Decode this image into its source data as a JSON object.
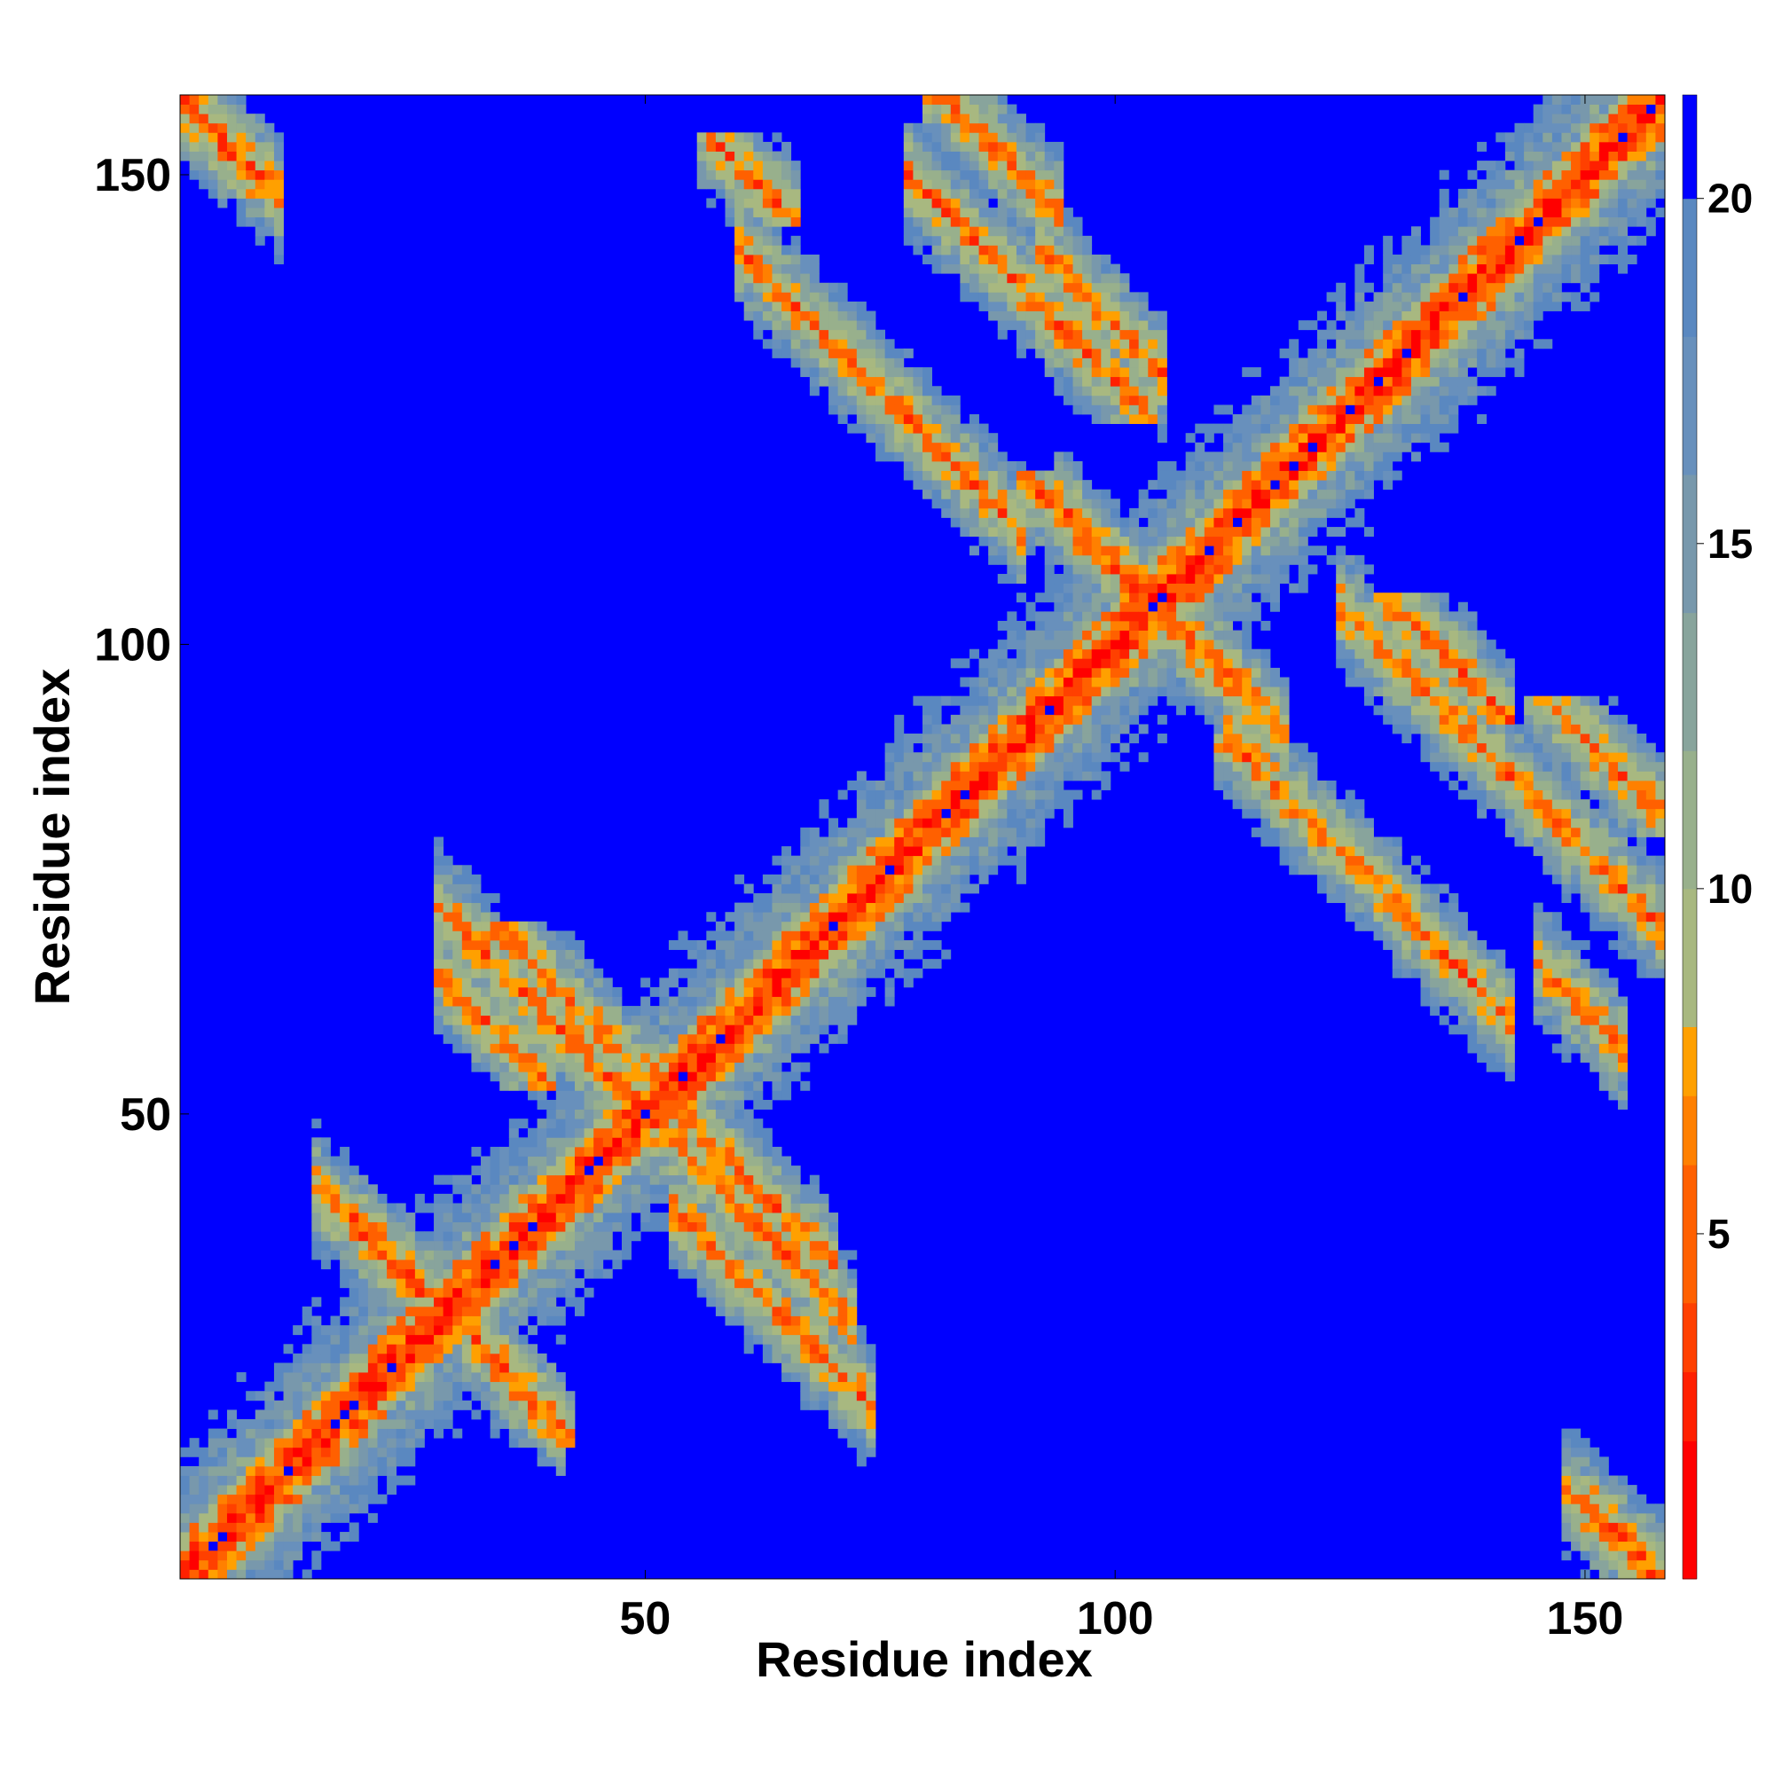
{
  "chart_data": {
    "type": "heatmap",
    "title": "",
    "xlabel": "Residue index",
    "ylabel": "Residue index",
    "n_residues": 158,
    "xlim": [
      1,
      158
    ],
    "ylim": [
      1,
      158
    ],
    "x_ticks": [
      50,
      100,
      150
    ],
    "y_ticks": [
      50,
      100,
      150
    ],
    "colorbar": {
      "ticks": [
        5,
        10,
        15,
        20
      ],
      "range": [
        0,
        21.5
      ],
      "bands": [
        {
          "min": 0,
          "max": 2,
          "color": "#ff0000"
        },
        {
          "min": 2,
          "max": 3,
          "color": "#ff2000"
        },
        {
          "min": 3,
          "max": 4,
          "color": "#ff4000"
        },
        {
          "min": 4,
          "max": 6,
          "color": "#ff6000"
        },
        {
          "min": 6,
          "max": 7,
          "color": "#ff8000"
        },
        {
          "min": 7,
          "max": 8,
          "color": "#ffa000"
        },
        {
          "min": 8,
          "max": 10,
          "color": "#a8b880"
        },
        {
          "min": 10,
          "max": 12,
          "color": "#98b08c"
        },
        {
          "min": 12,
          "max": 14,
          "color": "#88a49c"
        },
        {
          "min": 14,
          "max": 16,
          "color": "#7898ac"
        },
        {
          "min": 16,
          "max": 18,
          "color": "#6890bc"
        },
        {
          "min": 18,
          "max": 20,
          "color": "#5a88c0"
        },
        {
          "min": 20,
          "max": 21.5,
          "color": "#0000ff"
        }
      ]
    },
    "value_description": "distance matrix; diagonal (i=j) minimum, increasing with |i-j|, capped at 20",
    "contact_bands": [
      {
        "start": [
          1,
          1
        ],
        "end": [
          158,
          158
        ],
        "orientation": "parallel"
      },
      {
        "start": [
          30,
          70
        ],
        "end": [
          70,
          30
        ],
        "orientation": "antiparallel"
      },
      {
        "start": [
          48,
          56
        ],
        "end": [
          68,
          36
        ],
        "orientation": "antiparallel"
      },
      {
        "start": [
          55,
          38
        ],
        "end": [
          72,
          30
        ],
        "orientation": "antiparallel"
      },
      {
        "start": [
          17,
          40
        ],
        "end": [
          24,
          36
        ],
        "orientation": "antiparallel"
      },
      {
        "start": [
          33,
          25
        ],
        "end": [
          39,
          18
        ],
        "orientation": "antiparallel"
      },
      {
        "start": [
          82,
          158
        ],
        "end": [
          92,
          146
        ],
        "orientation": "antiparallel"
      },
      {
        "start": [
          62,
          140
        ],
        "end": [
          88,
          113
        ],
        "orientation": "antiparallel"
      },
      {
        "start": [
          94,
          140
        ],
        "end": [
          103,
          130
        ],
        "orientation": "antiparallel"
      },
      {
        "start": [
          96,
          113
        ],
        "end": [
          107,
          102
        ],
        "orientation": "antiparallel"
      },
      {
        "start": [
          104,
          104
        ],
        "end": [
          116,
          92
        ],
        "orientation": "antiparallel"
      },
      {
        "start": [
          114,
          88
        ],
        "end": [
          140,
          64
        ],
        "orientation": "antiparallel"
      },
      {
        "start": [
          126,
          102
        ],
        "end": [
          158,
          80
        ],
        "orientation": "antiparallel"
      },
      {
        "start": [
          147,
          64
        ],
        "end": [
          152,
          58
        ],
        "orientation": "antiparallel"
      },
      {
        "start": [
          1,
          158
        ],
        "end": [
          9,
          153
        ],
        "orientation": "antiparallel"
      },
      {
        "start": [
          150,
          8
        ],
        "end": [
          156,
          2
        ],
        "orientation": "antiparallel"
      }
    ]
  }
}
